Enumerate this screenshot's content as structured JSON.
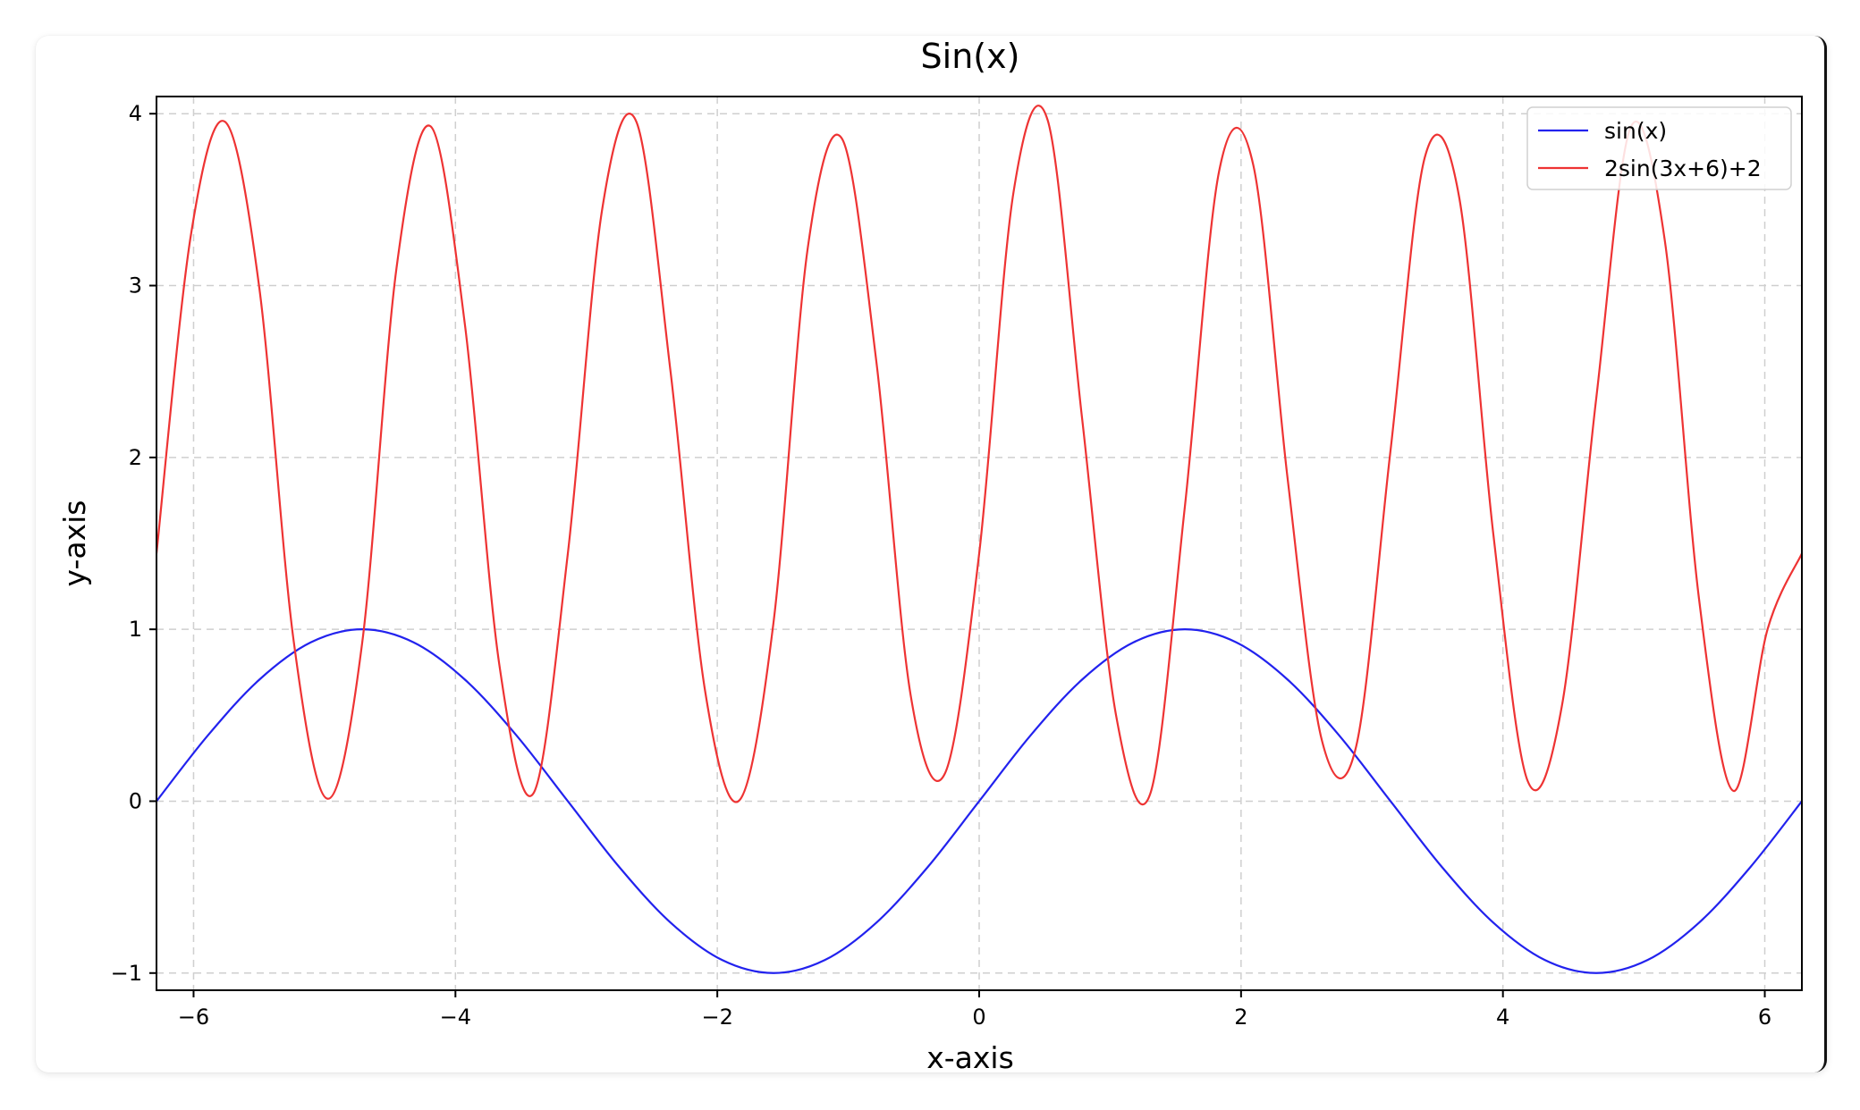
{
  "chart_data": {
    "type": "line",
    "title": "Sin(x)",
    "xlabel": "x-axis",
    "ylabel": "y-axis",
    "xlim": [
      -6.2832,
      6.2832
    ],
    "ylim": [
      -1.1,
      4.1
    ],
    "xticks": [
      -6,
      -4,
      -2,
      0,
      2,
      4,
      6
    ],
    "xtick_labels": [
      "−6",
      "−4",
      "−2",
      "0",
      "2",
      "4",
      "6"
    ],
    "yticks": [
      -1,
      0,
      1,
      2,
      3,
      4
    ],
    "ytick_labels": [
      "−1",
      "0",
      "1",
      "2",
      "3",
      "4"
    ],
    "grid": true,
    "legend_position": "top-right",
    "series": [
      {
        "name": "sin(x)",
        "color": "#2222ee",
        "x": [
          -6.2832,
          -5.8905,
          -5.4978,
          -5.1051,
          -4.7124,
          -4.3197,
          -3.927,
          -3.5343,
          -3.1416,
          -2.7489,
          -2.3562,
          -1.9635,
          -1.5708,
          -1.1781,
          -0.7854,
          -0.3927,
          0,
          0.3927,
          0.7854,
          1.1781,
          1.5708,
          1.9635,
          2.3562,
          2.7489,
          3.1416,
          3.5343,
          3.927,
          4.3197,
          4.7124,
          5.1051,
          5.4978,
          5.8905,
          6.2832
        ],
        "y": [
          0,
          0.383,
          0.707,
          0.924,
          1,
          0.924,
          0.707,
          0.383,
          0,
          -0.383,
          -0.707,
          -0.924,
          -1,
          -0.924,
          -0.707,
          -0.383,
          0,
          0.383,
          0.707,
          0.924,
          1,
          0.924,
          0.707,
          0.383,
          0,
          -0.383,
          -0.707,
          -0.924,
          -1,
          -0.924,
          -0.707,
          -0.383,
          0
        ]
      },
      {
        "name": "2sin(3x+6)+2",
        "color": "#ee3333",
        "x": [
          -6.2832,
          -6.0214,
          -5.7596,
          -5.4978,
          -5.236,
          -4.9742,
          -4.7124,
          -4.4506,
          -4.1888,
          -3.927,
          -3.6652,
          -3.4034,
          -3.1416,
          -2.8798,
          -2.618,
          -2.3562,
          -2.0944,
          -1.8326,
          -1.5708,
          -1.309,
          -1.0472,
          -0.7854,
          -0.5236,
          -0.2618,
          0,
          0.2618,
          0.5236,
          0.7854,
          1.0472,
          1.309,
          1.5708,
          1.8326,
          2.0944,
          2.3562,
          2.618,
          2.8798,
          3.1416,
          3.4034,
          3.6652,
          3.927,
          4.1888,
          4.4506,
          4.7124,
          4.9742,
          5.236,
          5.4978,
          5.7596,
          6.0214,
          6.2832
        ],
        "y": [
          1.441,
          3.289,
          3.953,
          2.986,
          0.935,
          0.014,
          0.92,
          3.099,
          3.926,
          2.769,
          0.796,
          0.047,
          1.441,
          3.441,
          3.953,
          2.493,
          0.647,
          0.004,
          1.04,
          3.22,
          3.854,
          2.558,
          0.618,
          0.161,
          1.441,
          3.541,
          3.961,
          2.231,
          0.492,
          0.049,
          1.713,
          3.666,
          3.698,
          1.873,
          0.352,
          0.321,
          2.041,
          3.746,
          3.517,
          1.552,
          0.118,
          0.555,
          2.342,
          3.918,
          3.264,
          1.176,
          0.06,
          1.001,
          1.441
        ]
      }
    ]
  }
}
